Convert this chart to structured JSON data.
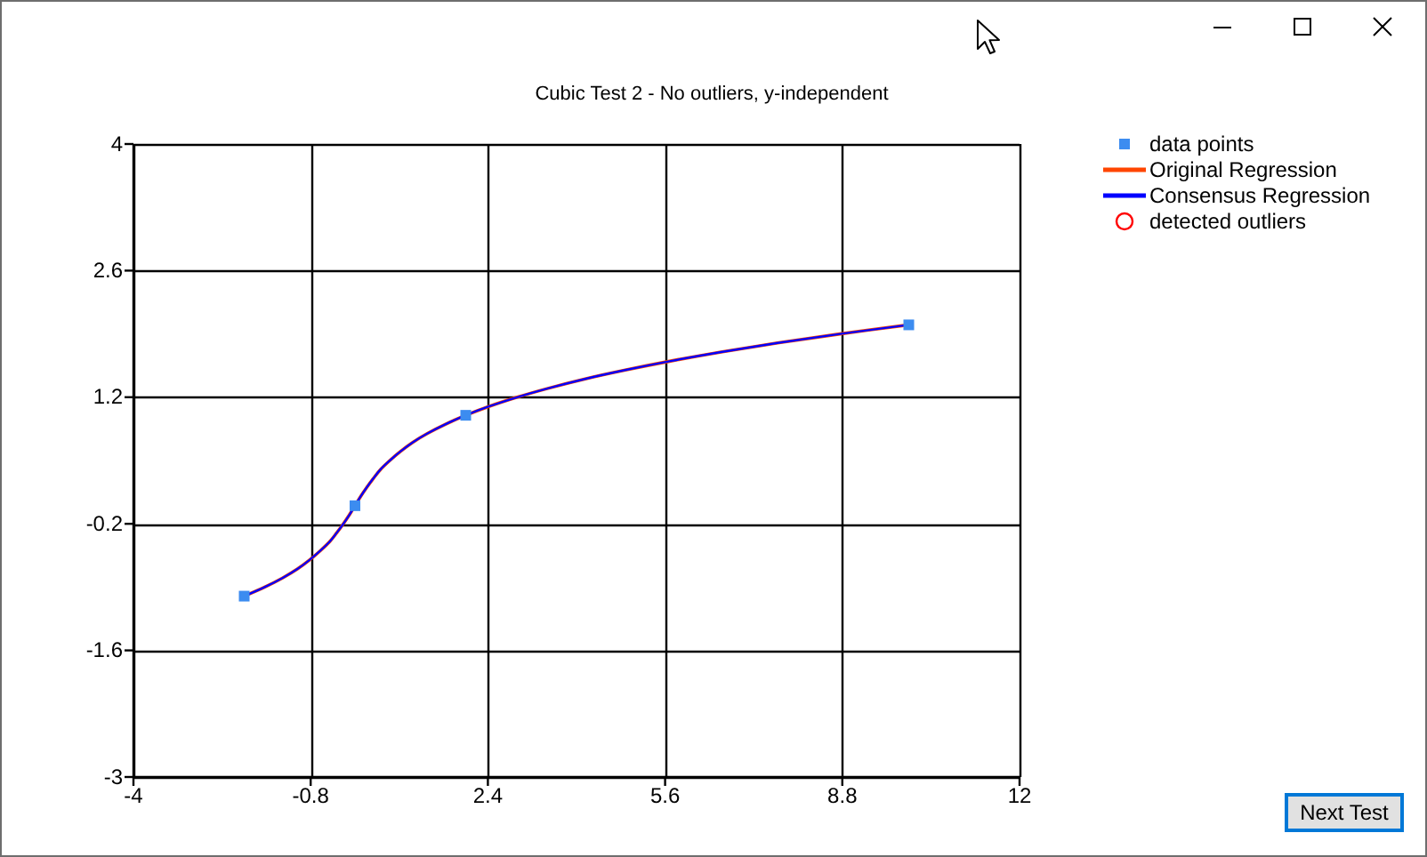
{
  "chart_data": {
    "type": "line",
    "title": "Cubic Test 2 - No outliers, y-independent",
    "xlim": [
      -4,
      12
    ],
    "xticks": [
      -4,
      -0.8,
      2.4,
      5.6,
      8.8,
      12
    ],
    "ylim": [
      -3,
      4
    ],
    "yticks": [
      -3,
      -1.6,
      -0.2,
      1.2,
      2.6,
      4
    ],
    "grid": true,
    "legend": "top right",
    "annotations": [
      "Next Test"
    ],
    "series": [
      {
        "name": "data points",
        "type": "scatter",
        "marker": "square",
        "color": "#3c8cf0",
        "x": [
          -2,
          0,
          2,
          10
        ],
        "values": [
          -1,
          0,
          1,
          2
        ]
      },
      {
        "name": "Original Regression",
        "color": "#ff4500",
        "x": [
          -2,
          -1.63,
          -1.31,
          -1.04,
          -0.82,
          -0.63,
          -0.46,
          -0.33,
          -0.21,
          -0.1,
          0,
          0.1,
          0.21,
          0.33,
          0.46,
          0.63,
          0.82,
          1.04,
          1.31,
          1.63,
          2,
          2.43,
          2.93,
          3.5,
          4.14,
          4.88,
          5.7,
          6.61,
          7.63,
          8.76,
          10
        ],
        "values": [
          -1,
          -0.9,
          -0.8,
          -0.7,
          -0.6,
          -0.5,
          -0.4,
          -0.3,
          -0.2,
          -0.1,
          0,
          0.1,
          0.2,
          0.3,
          0.4,
          0.5,
          0.6,
          0.7,
          0.8,
          0.9,
          1,
          1.1,
          1.2,
          1.3,
          1.4,
          1.5,
          1.6,
          1.7,
          1.8,
          1.9,
          2
        ]
      },
      {
        "name": "Consensus Regression",
        "color": "#0000ff",
        "x": [
          -2,
          -1.63,
          -1.31,
          -1.04,
          -0.82,
          -0.63,
          -0.46,
          -0.33,
          -0.21,
          -0.1,
          0,
          0.1,
          0.21,
          0.33,
          0.46,
          0.63,
          0.82,
          1.04,
          1.31,
          1.63,
          2,
          2.43,
          2.93,
          3.5,
          4.14,
          4.88,
          5.7,
          6.61,
          7.63,
          8.76,
          10
        ],
        "values": [
          -1,
          -0.9,
          -0.8,
          -0.7,
          -0.6,
          -0.5,
          -0.4,
          -0.3,
          -0.2,
          -0.1,
          0,
          0.1,
          0.2,
          0.3,
          0.4,
          0.5,
          0.6,
          0.7,
          0.8,
          0.9,
          1,
          1.1,
          1.2,
          1.3,
          1.4,
          1.5,
          1.6,
          1.7,
          1.8,
          1.9,
          2
        ]
      },
      {
        "name": "detected outliers",
        "type": "scatter",
        "marker": "circle",
        "color": "#ff0000"
      }
    ]
  }
}
